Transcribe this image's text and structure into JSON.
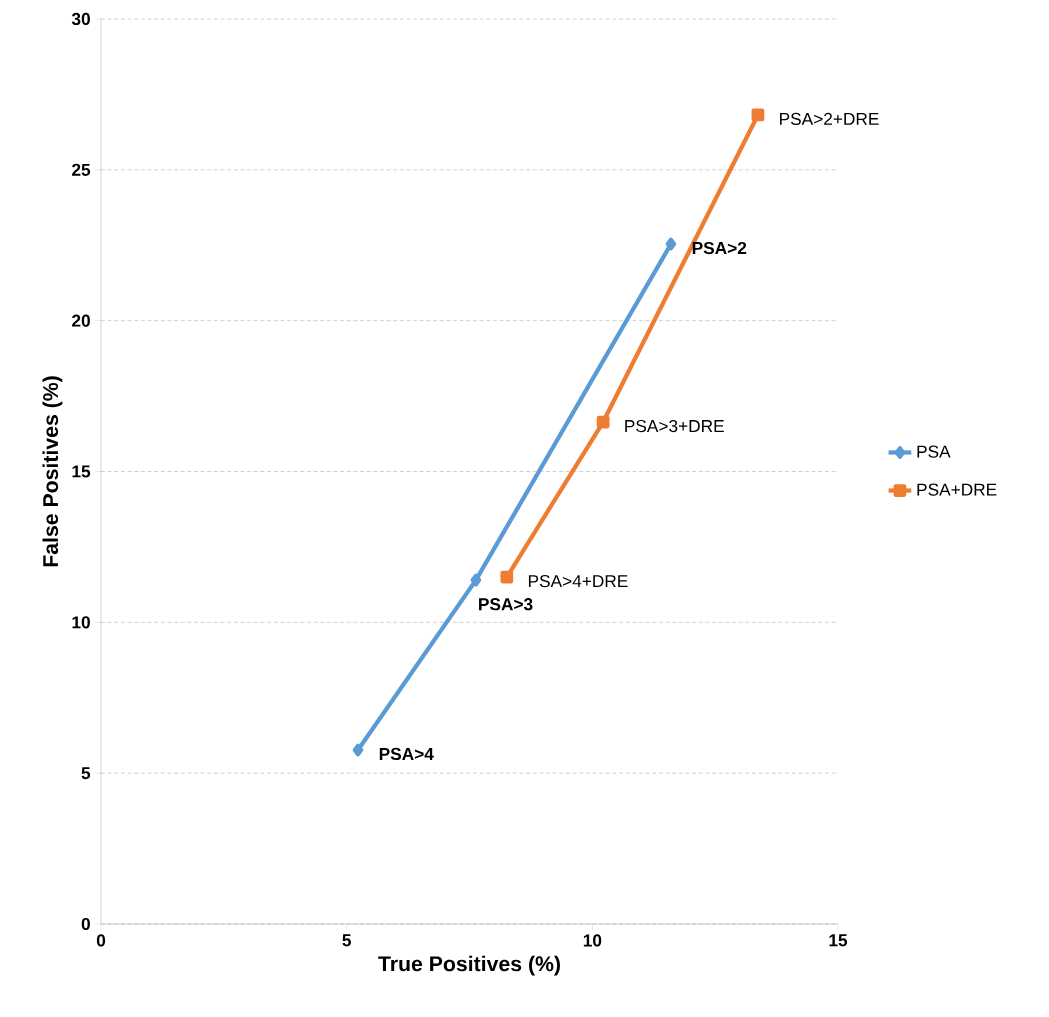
{
  "chart_data": {
    "type": "line",
    "xlabel": "True Positives (%)",
    "ylabel": "False Positives (%)",
    "series": [
      {
        "name": "PSA",
        "color": "#5b9bd5",
        "marker": "diamond",
        "x": [
          5.23,
          7.63,
          11.6
        ],
        "values": [
          5.77,
          11.4,
          22.54
        ]
      },
      {
        "name": "PSA+DRE",
        "color": "#ed7d31",
        "marker": "square",
        "x": [
          8.26,
          10.22,
          13.37
        ],
        "values": [
          11.5,
          16.64,
          26.82
        ]
      }
    ],
    "annotations": [
      {
        "text": "PSA>4",
        "x": 5.23,
        "y": 5.77
      },
      {
        "text": "PSA>3",
        "x": 7.63,
        "y": 11.4
      },
      {
        "text": "PSA>2",
        "x": 11.6,
        "y": 22.54
      },
      {
        "text": "PSA>4+DRE",
        "x": 8.26,
        "y": 11.5
      },
      {
        "text": "PSA>3+DRE",
        "x": 10.22,
        "y": 16.64
      },
      {
        "text": "PSA>2+DRE",
        "x": 13.37,
        "y": 26.82
      }
    ],
    "xlim": [
      0,
      15
    ],
    "xticks": [
      0,
      5,
      10,
      15
    ],
    "ylim": [
      0,
      30
    ],
    "yticks": [
      0,
      5,
      10,
      15,
      20,
      25,
      30
    ],
    "grid": "y",
    "legend": "right",
    "line_style": "solid"
  }
}
